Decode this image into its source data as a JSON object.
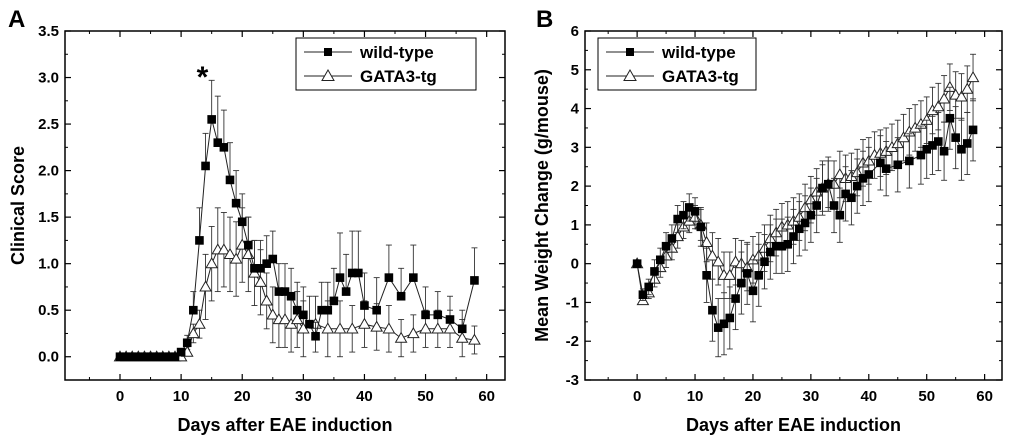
{
  "chart_data": [
    {
      "type": "line",
      "panel_label": "A",
      "xlabel": "Days after EAE induction",
      "ylabel": "Clinical Score",
      "xlim": [
        -9,
        63
      ],
      "ylim": [
        -0.25,
        3.5
      ],
      "xticks": [
        0,
        10,
        20,
        30,
        40,
        50,
        60
      ],
      "yticks": [
        0.0,
        0.5,
        1.0,
        1.5,
        2.0,
        2.5,
        3.0,
        3.5
      ],
      "xtick_labels": [
        "0",
        "10",
        "20",
        "30",
        "40",
        "50",
        "60"
      ],
      "ytick_labels": [
        "0.0",
        "0.5",
        "1.0",
        "1.5",
        "2.0",
        "2.5",
        "3.0",
        "3.5"
      ],
      "legend_position": "top-right",
      "annotation": {
        "text": "*",
        "x": 13.5,
        "y": 3.05
      },
      "series": [
        {
          "name": "wild-type",
          "marker": "square-filled",
          "points": [
            [
              0,
              0
            ],
            [
              1,
              0
            ],
            [
              2,
              0
            ],
            [
              3,
              0
            ],
            [
              4,
              0
            ],
            [
              5,
              0
            ],
            [
              6,
              0
            ],
            [
              7,
              0
            ],
            [
              8,
              0
            ],
            [
              9,
              0
            ],
            [
              10,
              0.05
            ],
            [
              11,
              0.15
            ],
            [
              12,
              0.5
            ],
            [
              13,
              1.25
            ],
            [
              14,
              2.05
            ],
            [
              15,
              2.55
            ],
            [
              16,
              2.3
            ],
            [
              17,
              2.25
            ],
            [
              18,
              1.9
            ],
            [
              19,
              1.65
            ],
            [
              20,
              1.45
            ],
            [
              21,
              1.2
            ],
            [
              22,
              0.95
            ],
            [
              23,
              0.95
            ],
            [
              24,
              1.0
            ],
            [
              25,
              1.05
            ],
            [
              26,
              0.7
            ],
            [
              27,
              0.7
            ],
            [
              28,
              0.65
            ],
            [
              29,
              0.5
            ],
            [
              30,
              0.45
            ],
            [
              31,
              0.35
            ],
            [
              32,
              0.22
            ],
            [
              33,
              0.5
            ],
            [
              34,
              0.5
            ],
            [
              35,
              0.6
            ],
            [
              36,
              0.85
            ],
            [
              37,
              0.7
            ],
            [
              38,
              0.9
            ],
            [
              39,
              0.9
            ],
            [
              40,
              0.55
            ],
            [
              42,
              0.5
            ],
            [
              44,
              0.85
            ],
            [
              46,
              0.65
            ],
            [
              48,
              0.85
            ],
            [
              50,
              0.45
            ],
            [
              52,
              0.45
            ],
            [
              54,
              0.4
            ],
            [
              56,
              0.3
            ],
            [
              58,
              0.82
            ]
          ],
          "error": [
            0,
            0,
            0,
            0,
            0,
            0,
            0,
            0,
            0,
            0,
            0.03,
            0.08,
            0.2,
            0.35,
            0.35,
            0.42,
            0.5,
            0.4,
            0.4,
            0.35,
            0.3,
            0.3,
            0.3,
            0.3,
            0.3,
            0.3,
            0.3,
            0.3,
            0.3,
            0.3,
            0.3,
            0.3,
            0.15,
            0.3,
            0.3,
            0.35,
            0.48,
            0.4,
            0.45,
            0.45,
            0.35,
            0.35,
            0.35,
            0.3,
            0.35,
            0.3,
            0.25,
            0.25,
            0.2,
            0.35
          ]
        },
        {
          "name": "GATA3-tg",
          "marker": "triangle-open",
          "points": [
            [
              0,
              0
            ],
            [
              1,
              0
            ],
            [
              2,
              0
            ],
            [
              3,
              0
            ],
            [
              4,
              0
            ],
            [
              5,
              0
            ],
            [
              6,
              0
            ],
            [
              7,
              0
            ],
            [
              8,
              0
            ],
            [
              9,
              0
            ],
            [
              10,
              0
            ],
            [
              11,
              0.05
            ],
            [
              12,
              0.25
            ],
            [
              13,
              0.35
            ],
            [
              14,
              0.75
            ],
            [
              15,
              1.0
            ],
            [
              16,
              1.15
            ],
            [
              17,
              1.15
            ],
            [
              18,
              1.1
            ],
            [
              19,
              1.05
            ],
            [
              20,
              1.2
            ],
            [
              21,
              1.1
            ],
            [
              22,
              0.9
            ],
            [
              23,
              0.8
            ],
            [
              24,
              0.6
            ],
            [
              25,
              0.45
            ],
            [
              26,
              0.4
            ],
            [
              27,
              0.4
            ],
            [
              28,
              0.35
            ],
            [
              29,
              0.4
            ],
            [
              30,
              0.3
            ],
            [
              32,
              0.35
            ],
            [
              34,
              0.3
            ],
            [
              36,
              0.3
            ],
            [
              38,
              0.3
            ],
            [
              40,
              0.35
            ],
            [
              42,
              0.32
            ],
            [
              44,
              0.3
            ],
            [
              46,
              0.2
            ],
            [
              48,
              0.25
            ],
            [
              50,
              0.3
            ],
            [
              52,
              0.3
            ],
            [
              54,
              0.3
            ],
            [
              56,
              0.2
            ],
            [
              58,
              0.18
            ]
          ],
          "error": [
            0,
            0,
            0,
            0,
            0,
            0,
            0,
            0,
            0,
            0,
            0,
            0.03,
            0.1,
            0.15,
            0.35,
            0.4,
            0.45,
            0.4,
            0.4,
            0.4,
            0.4,
            0.4,
            0.35,
            0.35,
            0.3,
            0.3,
            0.3,
            0.3,
            0.3,
            0.3,
            0.3,
            0.3,
            0.3,
            0.3,
            0.25,
            0.25,
            0.25,
            0.25,
            0.2,
            0.2,
            0.2,
            0.2,
            0.2,
            0.2,
            0.15
          ]
        }
      ]
    },
    {
      "type": "line",
      "panel_label": "B",
      "xlabel": "Days after EAE induction",
      "ylabel": "Mean Weight Change (g/mouse)",
      "xlim": [
        -9,
        63
      ],
      "ylim": [
        -3,
        6
      ],
      "xticks": [
        0,
        10,
        20,
        30,
        40,
        50,
        60
      ],
      "yticks": [
        -3,
        -2,
        -1,
        0,
        1,
        2,
        3,
        4,
        5,
        6
      ],
      "xtick_labels": [
        "0",
        "10",
        "20",
        "30",
        "40",
        "50",
        "60"
      ],
      "ytick_labels": [
        "-3",
        "-2",
        "-1",
        "0",
        "1",
        "2",
        "3",
        "4",
        "5",
        "6"
      ],
      "legend_position": "top-left",
      "series": [
        {
          "name": "wild-type",
          "marker": "square-filled",
          "points": [
            [
              0,
              0
            ],
            [
              1,
              -0.8
            ],
            [
              2,
              -0.6
            ],
            [
              3,
              -0.2
            ],
            [
              4,
              0.1
            ],
            [
              5,
              0.45
            ],
            [
              6,
              0.65
            ],
            [
              7,
              1.15
            ],
            [
              8,
              1.25
            ],
            [
              9,
              1.45
            ],
            [
              10,
              1.35
            ],
            [
              11,
              0.95
            ],
            [
              12,
              -0.3
            ],
            [
              13,
              -1.2
            ],
            [
              14,
              -1.65
            ],
            [
              15,
              -1.55
            ],
            [
              16,
              -1.4
            ],
            [
              17,
              -0.9
            ],
            [
              18,
              -0.5
            ],
            [
              19,
              -0.25
            ],
            [
              20,
              -0.7
            ],
            [
              21,
              -0.3
            ],
            [
              22,
              0.05
            ],
            [
              23,
              0.3
            ],
            [
              24,
              0.45
            ],
            [
              25,
              0.45
            ],
            [
              26,
              0.5
            ],
            [
              27,
              0.7
            ],
            [
              28,
              0.9
            ],
            [
              29,
              1.05
            ],
            [
              30,
              1.25
            ],
            [
              31,
              1.5
            ],
            [
              32,
              1.95
            ],
            [
              33,
              2.05
            ],
            [
              34,
              1.5
            ],
            [
              35,
              1.25
            ],
            [
              36,
              1.8
            ],
            [
              37,
              1.7
            ],
            [
              38,
              2.0
            ],
            [
              39,
              2.2
            ],
            [
              40,
              2.3
            ],
            [
              42,
              2.6
            ],
            [
              43,
              2.45
            ],
            [
              45,
              2.55
            ],
            [
              47,
              2.65
            ],
            [
              49,
              2.8
            ],
            [
              50,
              2.95
            ],
            [
              51,
              3.05
            ],
            [
              52,
              3.15
            ],
            [
              53,
              2.9
            ],
            [
              54,
              3.75
            ],
            [
              55,
              3.25
            ],
            [
              56,
              2.95
            ],
            [
              57,
              3.1
            ],
            [
              58,
              3.45
            ]
          ],
          "error": [
            0,
            0.15,
            0.2,
            0.3,
            0.3,
            0.35,
            0.35,
            0.35,
            0.35,
            0.35,
            0.35,
            0.5,
            0.7,
            0.8,
            0.75,
            0.8,
            0.8,
            0.8,
            0.8,
            0.8,
            0.8,
            0.8,
            0.7,
            0.7,
            0.7,
            0.7,
            0.7,
            0.7,
            0.7,
            0.7,
            0.7,
            0.7,
            0.7,
            0.7,
            0.7,
            0.7,
            0.7,
            0.7,
            0.7,
            0.7,
            0.7,
            0.7,
            0.7,
            0.7,
            0.7,
            0.75,
            0.75,
            0.75,
            0.75,
            0.75,
            0.8,
            0.8,
            0.8,
            0.8,
            0.8
          ]
        },
        {
          "name": "GATA3-tg",
          "marker": "triangle-open",
          "points": [
            [
              0,
              0
            ],
            [
              1,
              -0.95
            ],
            [
              2,
              -0.75
            ],
            [
              3,
              -0.4
            ],
            [
              4,
              -0.1
            ],
            [
              5,
              0.2
            ],
            [
              6,
              0.4
            ],
            [
              7,
              0.7
            ],
            [
              8,
              0.95
            ],
            [
              9,
              1.1
            ],
            [
              10,
              1.2
            ],
            [
              11,
              1.0
            ],
            [
              12,
              0.55
            ],
            [
              13,
              0.2
            ],
            [
              14,
              0.05
            ],
            [
              15,
              -0.3
            ],
            [
              16,
              -0.3
            ],
            [
              17,
              0.05
            ],
            [
              18,
              0.0
            ],
            [
              19,
              -0.1
            ],
            [
              20,
              0.1
            ],
            [
              21,
              0.2
            ],
            [
              22,
              0.4
            ],
            [
              23,
              0.65
            ],
            [
              24,
              0.8
            ],
            [
              25,
              0.95
            ],
            [
              26,
              1.0
            ],
            [
              27,
              1.1
            ],
            [
              28,
              1.2
            ],
            [
              29,
              1.45
            ],
            [
              30,
              1.65
            ],
            [
              31,
              1.85
            ],
            [
              32,
              1.95
            ],
            [
              33,
              2.05
            ],
            [
              34,
              2.05
            ],
            [
              35,
              2.3
            ],
            [
              36,
              2.2
            ],
            [
              37,
              2.25
            ],
            [
              38,
              2.35
            ],
            [
              39,
              2.6
            ],
            [
              40,
              2.65
            ],
            [
              41,
              2.8
            ],
            [
              42,
              2.85
            ],
            [
              43,
              2.9
            ],
            [
              44,
              3.0
            ],
            [
              45,
              3.1
            ],
            [
              46,
              3.25
            ],
            [
              47,
              3.4
            ],
            [
              48,
              3.5
            ],
            [
              49,
              3.6
            ],
            [
              50,
              3.7
            ],
            [
              51,
              3.95
            ],
            [
              52,
              4.05
            ],
            [
              53,
              4.25
            ],
            [
              54,
              4.55
            ],
            [
              55,
              4.35
            ],
            [
              56,
              4.3
            ],
            [
              57,
              4.5
            ],
            [
              58,
              4.8
            ]
          ],
          "error": [
            0,
            0.1,
            0.15,
            0.2,
            0.25,
            0.3,
            0.3,
            0.3,
            0.3,
            0.3,
            0.3,
            0.4,
            0.5,
            0.6,
            0.6,
            0.6,
            0.6,
            0.6,
            0.6,
            0.6,
            0.6,
            0.6,
            0.6,
            0.6,
            0.6,
            0.6,
            0.6,
            0.6,
            0.6,
            0.6,
            0.6,
            0.6,
            0.6,
            0.6,
            0.6,
            0.6,
            0.6,
            0.6,
            0.6,
            0.6,
            0.6,
            0.6,
            0.6,
            0.6,
            0.6,
            0.6,
            0.6,
            0.6,
            0.6,
            0.6,
            0.6,
            0.6,
            0.6,
            0.6,
            0.6,
            0.6,
            0.6,
            0.6,
            0.6
          ]
        }
      ]
    }
  ]
}
